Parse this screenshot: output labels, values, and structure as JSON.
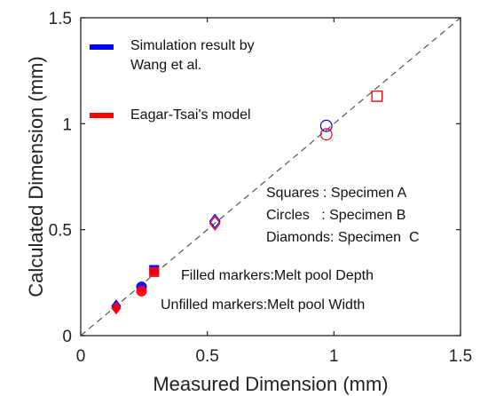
{
  "chart_data": {
    "type": "scatter",
    "title": "",
    "xlabel": "Measured Dimension (mm)",
    "ylabel": "Calculated Dimension (mm)",
    "xlim": [
      0,
      1.5
    ],
    "ylim": [
      0,
      1.5
    ],
    "xticks": [
      0,
      0.5,
      1,
      1.5
    ],
    "yticks": [
      0,
      0.5,
      1,
      1.5
    ],
    "xtick_labels": [
      "0",
      "0.5",
      "1",
      "1.5"
    ],
    "ytick_labels": [
      "0",
      "0.5",
      "1",
      "1.5"
    ],
    "grid": false,
    "reference_line": {
      "style": "dashed",
      "color": "#555555",
      "points": [
        [
          0,
          0
        ],
        [
          1.5,
          1.5
        ]
      ]
    },
    "legend_position": "top-left",
    "series": [
      {
        "name": "Simulation result by Wang et al.",
        "color": "#0000ff",
        "points": [
          {
            "x": 0.14,
            "y": 0.14,
            "shape": "diamond",
            "filled": true
          },
          {
            "x": 0.24,
            "y": 0.23,
            "shape": "circle",
            "filled": true
          },
          {
            "x": 0.29,
            "y": 0.31,
            "shape": "square",
            "filled": true
          },
          {
            "x": 0.53,
            "y": 0.54,
            "shape": "diamond",
            "filled": false
          },
          {
            "x": 0.97,
            "y": 0.99,
            "shape": "circle",
            "filled": false
          },
          {
            "x": 1.17,
            "y": 1.13,
            "shape": "square",
            "filled": false
          }
        ]
      },
      {
        "name": "Eagar-Tsai's model",
        "color": "#ff0000",
        "points": [
          {
            "x": 0.14,
            "y": 0.13,
            "shape": "diamond",
            "filled": true
          },
          {
            "x": 0.24,
            "y": 0.21,
            "shape": "circle",
            "filled": true
          },
          {
            "x": 0.29,
            "y": 0.3,
            "shape": "square",
            "filled": true
          },
          {
            "x": 0.53,
            "y": 0.53,
            "shape": "diamond",
            "filled": false
          },
          {
            "x": 0.97,
            "y": 0.95,
            "shape": "circle",
            "filled": false
          },
          {
            "x": 1.17,
            "y": 1.13,
            "shape": "square",
            "filled": false
          }
        ]
      }
    ],
    "annotations": {
      "shapes": [
        "Squares : Specimen A",
        "Circles   : Specimen B",
        "Diamonds: Specimen  C"
      ],
      "filled": "Filled markers:Melt pool Depth",
      "unfilled": "Unfilled markers:Melt pool Width"
    }
  }
}
